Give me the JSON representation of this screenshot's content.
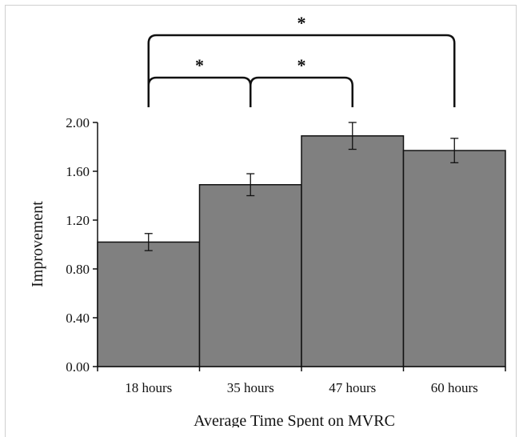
{
  "chart_data": {
    "type": "bar",
    "categories": [
      "18 hours",
      "35 hours",
      "47 hours",
      "60 hours"
    ],
    "values": [
      1.02,
      1.49,
      1.89,
      1.77
    ],
    "error": [
      0.07,
      0.09,
      0.11,
      0.1
    ],
    "xlabel": "Average Time Spent on MVRC",
    "ylabel": "Improvement",
    "ylim": [
      0,
      2
    ],
    "yticks": [
      "0.00",
      "0.40",
      "0.80",
      "1.20",
      "1.60",
      "2.00"
    ],
    "ytick_values": [
      0,
      0.4,
      0.8,
      1.2,
      1.6,
      2.0
    ],
    "bar_color": "#808080",
    "grid": false,
    "legend": "none",
    "significance": [
      {
        "from": 0,
        "to": 1,
        "label": "*",
        "level": 1
      },
      {
        "from": 1,
        "to": 2,
        "label": "*",
        "level": 1
      },
      {
        "from": 0,
        "to": 3,
        "label": "*",
        "level": 2
      }
    ]
  }
}
